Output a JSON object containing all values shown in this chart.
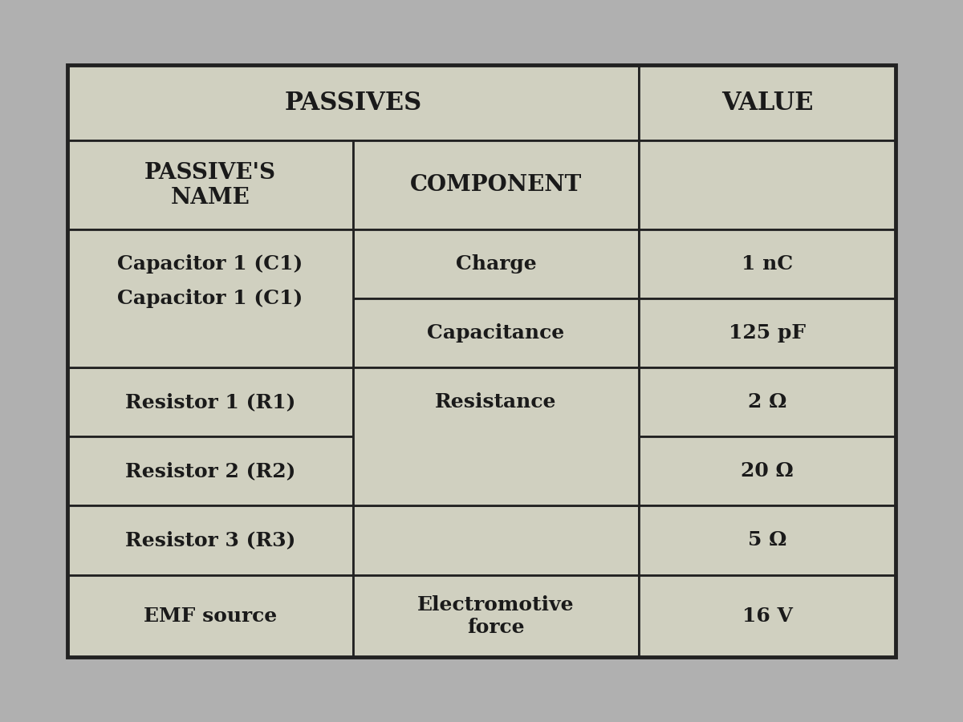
{
  "bg_color": "#b0b0b0",
  "table_bg": "#d0d0c0",
  "border_color": "#222222",
  "text_color": "#1a1a1a",
  "title": "PASSIVES",
  "title2": "VALUE",
  "col1_header": "PASSIVE'S\nNAME",
  "col2_header": "COMPONENT",
  "rows": [
    [
      "Capacitor 1 (C1)",
      "Charge",
      "1 nC"
    ],
    [
      "",
      "Capacitance",
      "125 pF"
    ],
    [
      "Resistor 1 (R1)",
      "Resistance",
      "2 Ω"
    ],
    [
      "Resistor 2 (R2)",
      "",
      "20 Ω"
    ],
    [
      "Resistor 3 (R3)",
      "",
      "5 Ω"
    ],
    [
      "EMF source",
      "Electromotive\nforce",
      "16 V"
    ]
  ],
  "font_size": 18,
  "header_font_size": 20,
  "title_font_size": 22
}
